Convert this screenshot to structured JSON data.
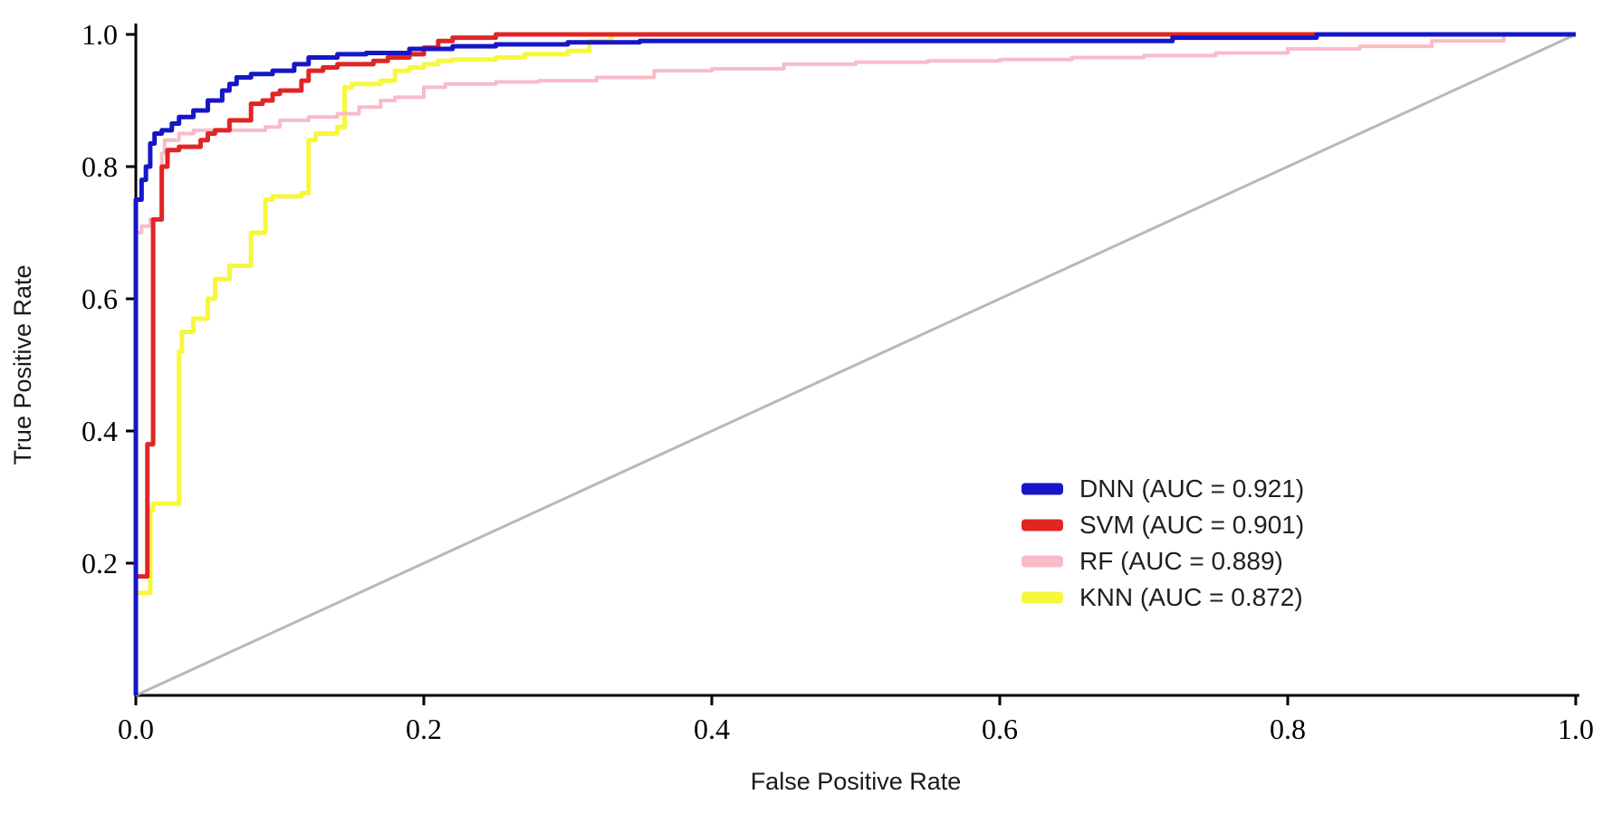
{
  "page": {
    "background": "#ffffff"
  },
  "chart_data": {
    "type": "line",
    "subtype": "roc-curve",
    "title": "",
    "xlabel": "False Positive Rate",
    "ylabel": "True Positive Rate",
    "xlim": [
      0,
      1
    ],
    "ylim": [
      0,
      1
    ],
    "xticks": [
      "0.0",
      "0.2",
      "0.4",
      "0.6",
      "0.8",
      "1.0"
    ],
    "yticks": [
      "0.2",
      "0.4",
      "0.6",
      "0.8",
      "1.0"
    ],
    "grid": false,
    "legend_position": "lower right",
    "axis_color": "#000000",
    "series": [
      {
        "name": "DNN",
        "label": "DNN (AUC = 0.921)",
        "auc": 0.921,
        "color": "#1616c8",
        "width": 5,
        "step": true,
        "points": [
          [
            0,
            0
          ],
          [
            0,
            0.665
          ],
          [
            0.004,
            0.75
          ],
          [
            0.007,
            0.78
          ],
          [
            0.01,
            0.8
          ],
          [
            0.013,
            0.835
          ],
          [
            0.018,
            0.85
          ],
          [
            0.025,
            0.855
          ],
          [
            0.03,
            0.865
          ],
          [
            0.04,
            0.875
          ],
          [
            0.05,
            0.885
          ],
          [
            0.06,
            0.9
          ],
          [
            0.065,
            0.915
          ],
          [
            0.07,
            0.925
          ],
          [
            0.08,
            0.935
          ],
          [
            0.095,
            0.94
          ],
          [
            0.11,
            0.945
          ],
          [
            0.12,
            0.955
          ],
          [
            0.14,
            0.965
          ],
          [
            0.16,
            0.97
          ],
          [
            0.19,
            0.972
          ],
          [
            0.22,
            0.978
          ],
          [
            0.25,
            0.982
          ],
          [
            0.3,
            0.985
          ],
          [
            0.35,
            0.988
          ],
          [
            0.4,
            0.99
          ],
          [
            0.42,
            0.99
          ],
          [
            0.72,
            0.99
          ],
          [
            0.74,
            0.995
          ],
          [
            0.82,
            0.995
          ],
          [
            0.83,
            1.0
          ],
          [
            1,
            1.0
          ]
        ]
      },
      {
        "name": "SVM",
        "label": "SVM (AUC = 0.901)",
        "auc": 0.901,
        "color": "#e02525",
        "width": 5,
        "step": true,
        "points": [
          [
            0,
            0
          ],
          [
            0,
            0.18
          ],
          [
            0.008,
            0.18
          ],
          [
            0.008,
            0.38
          ],
          [
            0.012,
            0.38
          ],
          [
            0.012,
            0.71
          ],
          [
            0.018,
            0.72
          ],
          [
            0.022,
            0.8
          ],
          [
            0.03,
            0.825
          ],
          [
            0.045,
            0.83
          ],
          [
            0.05,
            0.84
          ],
          [
            0.055,
            0.85
          ],
          [
            0.065,
            0.855
          ],
          [
            0.08,
            0.87
          ],
          [
            0.088,
            0.895
          ],
          [
            0.095,
            0.9
          ],
          [
            0.1,
            0.91
          ],
          [
            0.115,
            0.915
          ],
          [
            0.12,
            0.93
          ],
          [
            0.13,
            0.945
          ],
          [
            0.14,
            0.95
          ],
          [
            0.165,
            0.955
          ],
          [
            0.175,
            0.96
          ],
          [
            0.19,
            0.965
          ],
          [
            0.2,
            0.97
          ],
          [
            0.21,
            0.98
          ],
          [
            0.22,
            0.99
          ],
          [
            0.25,
            0.995
          ],
          [
            0.285,
            1.0
          ],
          [
            1,
            1.0
          ]
        ]
      },
      {
        "name": "RF",
        "label": "RF (AUC = 0.889)",
        "auc": 0.889,
        "color": "#f8bcc8",
        "width": 4,
        "step": true,
        "points": [
          [
            0,
            0
          ],
          [
            0,
            0.625
          ],
          [
            0.004,
            0.7
          ],
          [
            0.01,
            0.71
          ],
          [
            0.018,
            0.72
          ],
          [
            0.02,
            0.82
          ],
          [
            0.03,
            0.84
          ],
          [
            0.04,
            0.85
          ],
          [
            0.05,
            0.855
          ],
          [
            0.09,
            0.855
          ],
          [
            0.1,
            0.86
          ],
          [
            0.12,
            0.87
          ],
          [
            0.14,
            0.875
          ],
          [
            0.155,
            0.88
          ],
          [
            0.17,
            0.89
          ],
          [
            0.18,
            0.9
          ],
          [
            0.2,
            0.905
          ],
          [
            0.215,
            0.92
          ],
          [
            0.25,
            0.925
          ],
          [
            0.28,
            0.928
          ],
          [
            0.32,
            0.93
          ],
          [
            0.36,
            0.935
          ],
          [
            0.4,
            0.945
          ],
          [
            0.45,
            0.948
          ],
          [
            0.5,
            0.955
          ],
          [
            0.55,
            0.958
          ],
          [
            0.6,
            0.96
          ],
          [
            0.65,
            0.962
          ],
          [
            0.7,
            0.965
          ],
          [
            0.75,
            0.968
          ],
          [
            0.8,
            0.972
          ],
          [
            0.85,
            0.978
          ],
          [
            0.9,
            0.982
          ],
          [
            0.95,
            0.99
          ],
          [
            1,
            1.0
          ]
        ]
      },
      {
        "name": "KNN",
        "label": "KNN (AUC = 0.872)",
        "auc": 0.872,
        "color": "#f7f73d",
        "width": 5,
        "step": true,
        "points": [
          [
            0,
            0
          ],
          [
            0,
            0.15
          ],
          [
            0.01,
            0.155
          ],
          [
            0.012,
            0.28
          ],
          [
            0.03,
            0.29
          ],
          [
            0.032,
            0.52
          ],
          [
            0.04,
            0.55
          ],
          [
            0.05,
            0.57
          ],
          [
            0.055,
            0.6
          ],
          [
            0.065,
            0.63
          ],
          [
            0.08,
            0.65
          ],
          [
            0.09,
            0.7
          ],
          [
            0.095,
            0.75
          ],
          [
            0.115,
            0.755
          ],
          [
            0.12,
            0.76
          ],
          [
            0.125,
            0.84
          ],
          [
            0.14,
            0.85
          ],
          [
            0.145,
            0.86
          ],
          [
            0.15,
            0.92
          ],
          [
            0.17,
            0.925
          ],
          [
            0.18,
            0.93
          ],
          [
            0.19,
            0.945
          ],
          [
            0.2,
            0.95
          ],
          [
            0.21,
            0.955
          ],
          [
            0.22,
            0.96
          ],
          [
            0.25,
            0.962
          ],
          [
            0.27,
            0.965
          ],
          [
            0.3,
            0.97
          ],
          [
            0.315,
            0.975
          ],
          [
            0.33,
            0.99
          ],
          [
            0.36,
            1.0
          ],
          [
            1,
            1.0
          ]
        ]
      },
      {
        "name": "chance",
        "label": "",
        "color": "#b8b8b8",
        "width": 3,
        "step": false,
        "points": [
          [
            0,
            0
          ],
          [
            1,
            1
          ]
        ]
      }
    ]
  }
}
